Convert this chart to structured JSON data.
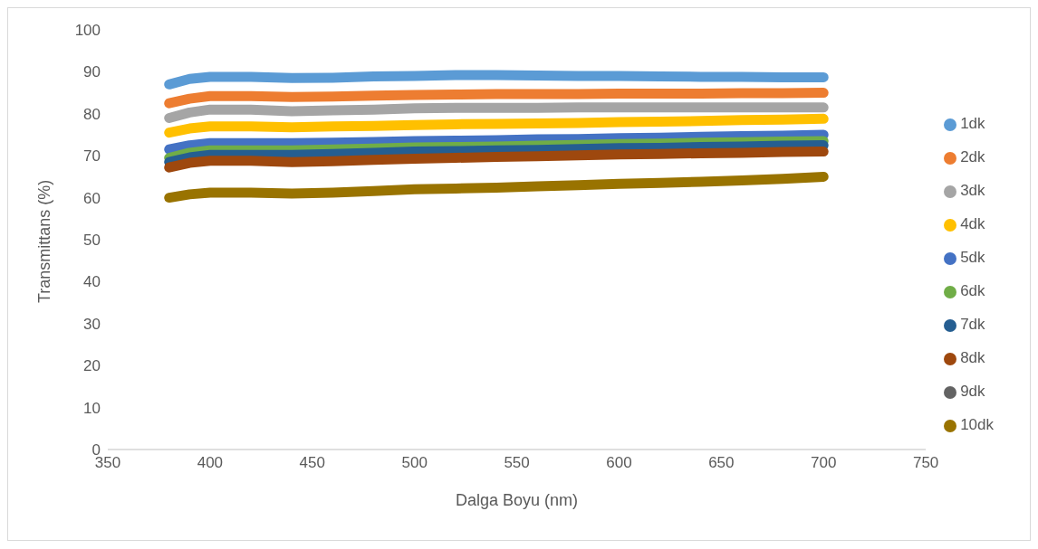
{
  "chart_data": {
    "type": "line",
    "xlabel": "Dalga Boyu (nm)",
    "ylabel": "Transmittans (%)",
    "x": [
      380,
      390,
      400,
      420,
      440,
      460,
      480,
      500,
      520,
      540,
      560,
      580,
      600,
      620,
      640,
      660,
      680,
      700
    ],
    "xlim": [
      350,
      750
    ],
    "xticks": [
      350,
      400,
      450,
      500,
      550,
      600,
      650,
      700,
      750
    ],
    "ylim": [
      0,
      100
    ],
    "yticks": [
      0,
      10,
      20,
      30,
      40,
      50,
      60,
      70,
      80,
      90,
      100
    ],
    "grid": false,
    "legend": "right",
    "marker": "none",
    "line_style": "solid",
    "series": [
      {
        "name": "1dk",
        "color": "#5b9bd5",
        "values": [
          87,
          88.3,
          88.8,
          88.8,
          88.5,
          88.6,
          88.9,
          89,
          89.2,
          89.2,
          89.1,
          89,
          89,
          88.9,
          88.8,
          88.8,
          88.7,
          88.7
        ]
      },
      {
        "name": "2dk",
        "color": "#ed7d31",
        "values": [
          82.5,
          83.6,
          84.2,
          84.2,
          84,
          84.1,
          84.3,
          84.5,
          84.6,
          84.7,
          84.7,
          84.7,
          84.8,
          84.8,
          84.8,
          84.9,
          84.9,
          85
        ]
      },
      {
        "name": "3dk",
        "color": "#a5a5a5",
        "values": [
          79,
          80.3,
          81,
          81,
          80.6,
          80.8,
          81,
          81.3,
          81.4,
          81.4,
          81.4,
          81.5,
          81.5,
          81.5,
          81.5,
          81.5,
          81.5,
          81.5
        ]
      },
      {
        "name": "4dk",
        "color": "#ffc000",
        "values": [
          75.5,
          76.5,
          77,
          77,
          76.8,
          77,
          77.1,
          77.3,
          77.5,
          77.6,
          77.7,
          77.8,
          78,
          78.1,
          78.3,
          78.5,
          78.6,
          78.8
        ]
      },
      {
        "name": "5dk",
        "color": "#4472c4",
        "values": [
          71.5,
          72.5,
          73,
          73,
          73,
          73.1,
          73.3,
          73.5,
          73.6,
          73.7,
          73.9,
          74,
          74.2,
          74.3,
          74.5,
          74.7,
          74.8,
          75
        ]
      },
      {
        "name": "6dk",
        "color": "#70ad47",
        "values": [
          69.5,
          70.7,
          71.3,
          71.3,
          71.3,
          71.5,
          71.7,
          72,
          72.1,
          72.2,
          72.4,
          72.6,
          72.8,
          72.9,
          73.1,
          73.2,
          73.4,
          73.5
        ]
      },
      {
        "name": "7dk",
        "color": "#255e91",
        "values": [
          68.5,
          69.6,
          70.2,
          70.2,
          70.2,
          70.4,
          70.7,
          71,
          71.1,
          71.3,
          71.4,
          71.6,
          71.8,
          71.9,
          72.1,
          72.2,
          72.4,
          72.5
        ]
      },
      {
        "name": "8dk",
        "color": "#9e480e",
        "values": [
          67.2,
          68.3,
          68.8,
          68.8,
          68.5,
          68.7,
          69,
          69.3,
          69.5,
          69.7,
          69.9,
          70.1,
          70.3,
          70.4,
          70.6,
          70.7,
          70.9,
          71
        ]
      },
      {
        "name": "9dk",
        "color": "#636363",
        "values": [
          null,
          null,
          null,
          null,
          null,
          null,
          null,
          null,
          null,
          null,
          null,
          null,
          null,
          null,
          null,
          null,
          null,
          null
        ]
      },
      {
        "name": "10dk",
        "color": "#997300",
        "values": [
          60,
          60.8,
          61.2,
          61.2,
          61,
          61.2,
          61.6,
          62,
          62.2,
          62.4,
          62.7,
          63,
          63.3,
          63.5,
          63.8,
          64.1,
          64.5,
          65
        ]
      }
    ]
  }
}
